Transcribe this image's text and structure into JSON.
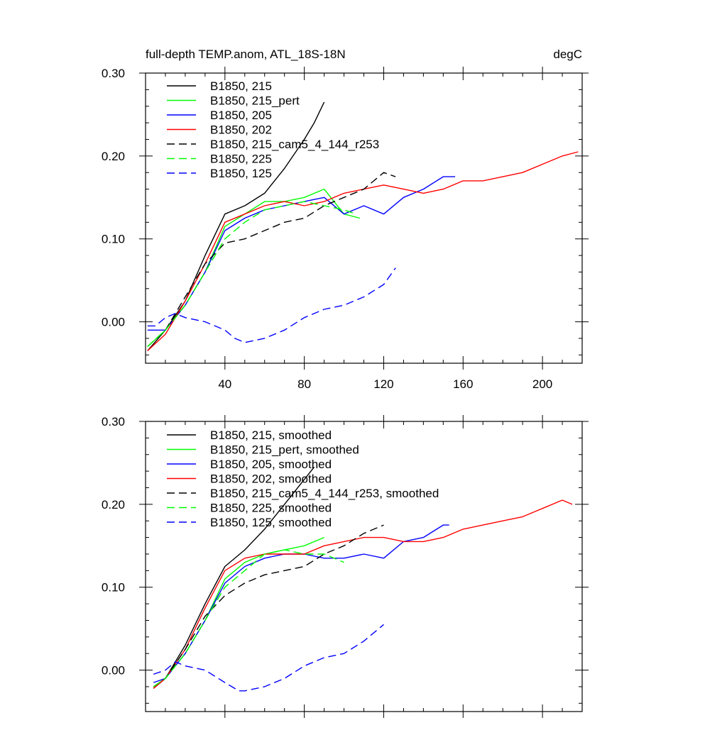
{
  "title_left": "full-depth TEMP.anom, ATL_18S-18N",
  "title_right": "degC",
  "chart_data": [
    {
      "type": "line",
      "title": "full-depth TEMP.anom, ATL_18S-18N",
      "units": "degC",
      "xlim": [
        0,
        220
      ],
      "ylim": [
        -0.05,
        0.3
      ],
      "x_ticks": [
        40,
        80,
        120,
        160,
        200
      ],
      "x_tick_labels": [
        "40",
        "80",
        "120",
        "160",
        "200"
      ],
      "y_ticks": [
        0,
        0.1,
        0.2,
        0.3
      ],
      "y_tick_labels": [
        "0.00",
        "0.10",
        "0.20",
        "0.30"
      ],
      "legend_position": "top-left",
      "series": [
        {
          "name": "B1850, 215",
          "color": "#000000",
          "dash": "solid",
          "x": [
            1,
            10,
            20,
            30,
            40,
            50,
            60,
            70,
            80,
            85,
            90
          ],
          "y": [
            -0.035,
            -0.01,
            0.025,
            0.08,
            0.13,
            0.14,
            0.155,
            0.185,
            0.22,
            0.24,
            0.265
          ]
        },
        {
          "name": "B1850, 215_pert",
          "color": "#00ff00",
          "dash": "solid",
          "x": [
            1,
            10,
            20,
            30,
            40,
            50,
            60,
            70,
            80,
            90,
            100,
            108
          ],
          "y": [
            -0.03,
            -0.01,
            0.02,
            0.06,
            0.115,
            0.13,
            0.145,
            0.145,
            0.15,
            0.16,
            0.13,
            0.125
          ]
        },
        {
          "name": "B1850, 205",
          "color": "#0000ff",
          "dash": "solid",
          "x": [
            1,
            10,
            20,
            30,
            40,
            50,
            60,
            70,
            80,
            90,
            100,
            110,
            120,
            130,
            140,
            150,
            156
          ],
          "y": [
            -0.01,
            -0.01,
            0.02,
            0.06,
            0.11,
            0.125,
            0.135,
            0.14,
            0.145,
            0.15,
            0.13,
            0.14,
            0.13,
            0.15,
            0.16,
            0.175,
            0.175
          ]
        },
        {
          "name": "B1850, 202",
          "color": "#ff0000",
          "dash": "solid",
          "x": [
            1,
            10,
            20,
            30,
            40,
            50,
            60,
            70,
            80,
            90,
            100,
            110,
            120,
            130,
            140,
            150,
            160,
            170,
            180,
            190,
            200,
            210,
            218
          ],
          "y": [
            -0.035,
            -0.015,
            0.025,
            0.07,
            0.12,
            0.13,
            0.14,
            0.145,
            0.14,
            0.145,
            0.155,
            0.16,
            0.165,
            0.16,
            0.155,
            0.16,
            0.17,
            0.17,
            0.175,
            0.18,
            0.19,
            0.2,
            0.205
          ]
        },
        {
          "name": "B1850, 215_cam5_4_144_r253",
          "color": "#000000",
          "dash": "dashed",
          "x": [
            1,
            10,
            20,
            30,
            40,
            50,
            60,
            70,
            80,
            90,
            100,
            110,
            120,
            126
          ],
          "y": [
            -0.03,
            -0.01,
            0.03,
            0.07,
            0.095,
            0.1,
            0.11,
            0.12,
            0.125,
            0.14,
            0.15,
            0.16,
            0.18,
            0.175
          ]
        },
        {
          "name": "B1850, 225",
          "color": "#00ff00",
          "dash": "dashed",
          "x": [
            1,
            10,
            20,
            30,
            40,
            50,
            60,
            70,
            80,
            90,
            100,
            106
          ],
          "y": [
            -0.03,
            -0.01,
            0.02,
            0.06,
            0.1,
            0.12,
            0.135,
            0.14,
            0.145,
            0.14,
            0.135,
            0.13
          ]
        },
        {
          "name": "B1850, 125",
          "color": "#0000ff",
          "dash": "dashed",
          "x": [
            1,
            5,
            10,
            15,
            20,
            30,
            40,
            45,
            50,
            60,
            70,
            80,
            90,
            100,
            110,
            120,
            126
          ],
          "y": [
            -0.005,
            -0.005,
            0.005,
            0.01,
            0.005,
            0.0,
            -0.01,
            -0.02,
            -0.025,
            -0.02,
            -0.01,
            0.005,
            0.015,
            0.02,
            0.03,
            0.045,
            0.065
          ]
        }
      ]
    },
    {
      "type": "line",
      "xlim": [
        0,
        220
      ],
      "ylim": [
        -0.05,
        0.3
      ],
      "x_ticks": [
        40,
        80,
        120,
        160,
        200
      ],
      "y_ticks": [
        0,
        0.1,
        0.2,
        0.3
      ],
      "y_tick_labels": [
        "0.00",
        "0.10",
        "0.20",
        "0.30"
      ],
      "legend_position": "top-left",
      "series": [
        {
          "name": "B1850, 215, smoothed",
          "color": "#000000",
          "dash": "solid",
          "x": [
            4,
            10,
            20,
            30,
            40,
            50,
            60,
            70,
            80,
            85
          ],
          "y": [
            -0.022,
            -0.01,
            0.03,
            0.08,
            0.125,
            0.145,
            0.17,
            0.2,
            0.23,
            0.245
          ]
        },
        {
          "name": "B1850, 215_pert, smoothed",
          "color": "#00ff00",
          "dash": "solid",
          "x": [
            4,
            10,
            20,
            30,
            40,
            50,
            60,
            70,
            80,
            90
          ],
          "y": [
            -0.02,
            -0.01,
            0.02,
            0.06,
            0.11,
            0.13,
            0.14,
            0.145,
            0.15,
            0.16
          ]
        },
        {
          "name": "B1850, 205, smoothed",
          "color": "#0000ff",
          "dash": "solid",
          "x": [
            4,
            10,
            20,
            30,
            40,
            50,
            60,
            70,
            80,
            90,
            100,
            110,
            120,
            130,
            140,
            150,
            153
          ],
          "y": [
            -0.015,
            -0.01,
            0.02,
            0.06,
            0.105,
            0.125,
            0.135,
            0.14,
            0.14,
            0.135,
            0.135,
            0.14,
            0.135,
            0.155,
            0.16,
            0.175,
            0.175
          ]
        },
        {
          "name": "B1850, 202, smoothed",
          "color": "#ff0000",
          "dash": "solid",
          "x": [
            4,
            10,
            20,
            30,
            40,
            50,
            60,
            70,
            80,
            90,
            100,
            110,
            120,
            130,
            140,
            150,
            160,
            170,
            180,
            190,
            200,
            210,
            215
          ],
          "y": [
            -0.022,
            -0.01,
            0.025,
            0.075,
            0.12,
            0.135,
            0.14,
            0.14,
            0.14,
            0.15,
            0.155,
            0.16,
            0.16,
            0.155,
            0.155,
            0.16,
            0.17,
            0.175,
            0.18,
            0.185,
            0.195,
            0.205,
            0.2
          ]
        },
        {
          "name": "B1850, 215_cam5_4_144_r253, smoothed",
          "color": "#000000",
          "dash": "dashed",
          "x": [
            4,
            10,
            20,
            30,
            40,
            50,
            60,
            70,
            80,
            90,
            100,
            110,
            120
          ],
          "y": [
            -0.02,
            -0.01,
            0.025,
            0.065,
            0.09,
            0.105,
            0.115,
            0.12,
            0.125,
            0.14,
            0.15,
            0.165,
            0.175
          ]
        },
        {
          "name": "B1850, 225, smoothed",
          "color": "#00ff00",
          "dash": "dashed",
          "x": [
            4,
            10,
            20,
            30,
            40,
            50,
            60,
            70,
            80,
            90,
            100
          ],
          "y": [
            -0.02,
            -0.01,
            0.02,
            0.06,
            0.1,
            0.12,
            0.14,
            0.145,
            0.14,
            0.14,
            0.13
          ]
        },
        {
          "name": "B1850, 125, smoothed",
          "color": "#0000ff",
          "dash": "dashed",
          "x": [
            4,
            10,
            15,
            20,
            30,
            40,
            47,
            50,
            60,
            70,
            80,
            90,
            100,
            110,
            120
          ],
          "y": [
            -0.005,
            0.0,
            0.01,
            0.005,
            0.0,
            -0.015,
            -0.025,
            -0.025,
            -0.02,
            -0.01,
            0.005,
            0.015,
            0.02,
            0.035,
            0.055
          ]
        }
      ]
    }
  ]
}
